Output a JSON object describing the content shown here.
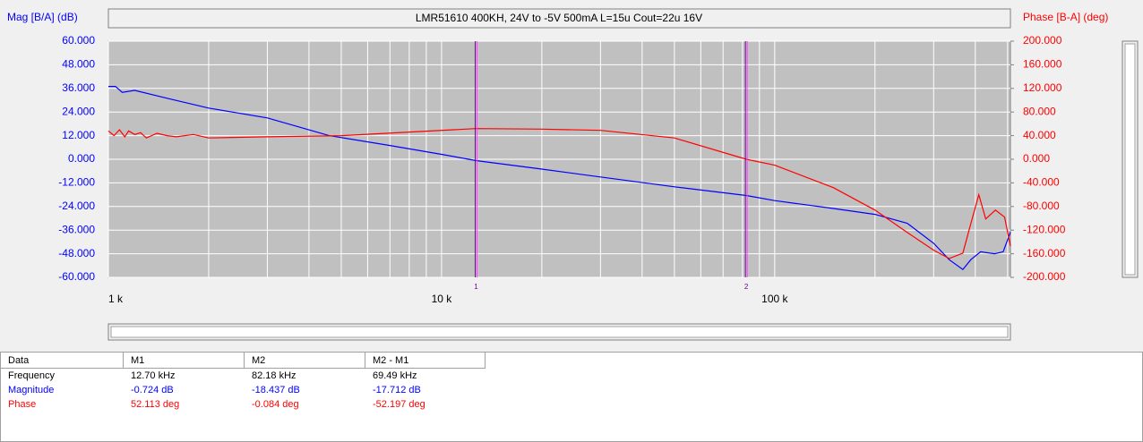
{
  "chart_data": {
    "type": "line",
    "title": "LMR51610 400KH, 24V to -5V 500mA L=15u Cout=22u 16V",
    "y_label": "Mag [B/A] (dB)",
    "y2_label": "Phase [B-A] (deg)",
    "x_log": true,
    "grid": true,
    "xlim": [
      1000,
      510000
    ],
    "xticks": [
      {
        "value": 1000,
        "label": "1 k"
      },
      {
        "value": 10000,
        "label": "10 k"
      },
      {
        "value": 100000,
        "label": "100 k"
      }
    ],
    "xgrid": [
      2000,
      3000,
      4000,
      5000,
      6000,
      7000,
      8000,
      9000,
      20000,
      30000,
      40000,
      50000,
      60000,
      70000,
      80000,
      90000,
      200000,
      300000,
      400000,
      500000
    ],
    "ylim": [
      -60,
      60
    ],
    "yticks": [
      {
        "value": 60,
        "label": "60.000"
      },
      {
        "value": 48,
        "label": "48.000"
      },
      {
        "value": 36,
        "label": "36.000"
      },
      {
        "value": 24,
        "label": "24.000"
      },
      {
        "value": 12,
        "label": "12.000"
      },
      {
        "value": 0,
        "label": "0.000"
      },
      {
        "value": -12,
        "label": "-12.000"
      },
      {
        "value": -24,
        "label": "-24.000"
      },
      {
        "value": -36,
        "label": "-36.000"
      },
      {
        "value": -48,
        "label": "-48.000"
      },
      {
        "value": -60,
        "label": "-60.000"
      }
    ],
    "y2lim": [
      -200,
      200
    ],
    "y2ticks": [
      {
        "value": 200,
        "label": "200.000"
      },
      {
        "value": 160,
        "label": "160.000"
      },
      {
        "value": 120,
        "label": "120.000"
      },
      {
        "value": 80,
        "label": "80.000"
      },
      {
        "value": 40,
        "label": "40.000"
      },
      {
        "value": 0,
        "label": "0.000"
      },
      {
        "value": -40,
        "label": "-40.000"
      },
      {
        "value": -80,
        "label": "-80.000"
      },
      {
        "value": -120,
        "label": "-120.000"
      },
      {
        "value": -160,
        "label": "-160.000"
      },
      {
        "value": -200,
        "label": "-200.000"
      }
    ],
    "series": [
      {
        "color": "#0000ff",
        "x": [
          1000,
          1050,
          1100,
          1200,
          1500,
          2000,
          3000,
          4600,
          7000,
          10000,
          12700,
          20000,
          30000,
          50000,
          82180,
          100000,
          150000,
          200000,
          250000,
          300000,
          334000,
          367000,
          388000,
          415000,
          457000,
          485000,
          510000
        ],
        "values": [
          37,
          37,
          34,
          35,
          31,
          26,
          21,
          12,
          7,
          2.5,
          -0.7,
          -5,
          -9,
          -14,
          -18.4,
          -21,
          -25,
          -28,
          -32.5,
          -42.7,
          -51,
          -56,
          -51,
          -47,
          -48,
          -47,
          -37
        ]
      },
      {
        "color": "#ff0000",
        "axis": "y2",
        "x": [
          1000,
          1040,
          1080,
          1120,
          1150,
          1200,
          1250,
          1300,
          1400,
          1500,
          1600,
          1800,
          2000,
          3000,
          5000,
          8000,
          12700,
          20000,
          30000,
          50000,
          82180,
          100000,
          150000,
          200000,
          250000,
          300000,
          334000,
          367000,
          388000,
          410000,
          430000,
          460000,
          490000,
          510000
        ],
        "values": [
          48,
          40,
          50,
          38,
          48,
          42,
          45,
          36,
          44,
          40,
          38,
          42,
          36,
          38,
          40,
          46,
          52,
          51,
          49,
          36,
          0,
          -10,
          -48,
          -86,
          -124,
          -154,
          -168,
          -159,
          -109,
          -60,
          -101,
          -86,
          -98,
          -147
        ]
      }
    ],
    "markers": [
      {
        "label": "1",
        "x": 12700
      },
      {
        "label": "2",
        "x": 82180
      }
    ]
  },
  "table": {
    "header": [
      "Data",
      "M1",
      "M2",
      "M2 - M1"
    ],
    "rows": [
      [
        "Frequency",
        "12.70 kHz",
        "82.18 kHz",
        "69.49 kHz"
      ],
      [
        "Magnitude",
        "-0.724 dB",
        "-18.437 dB",
        "-17.712 dB"
      ],
      [
        "Phase",
        "52.113 deg",
        "-0.084 deg",
        "-52.197 deg"
      ]
    ]
  }
}
